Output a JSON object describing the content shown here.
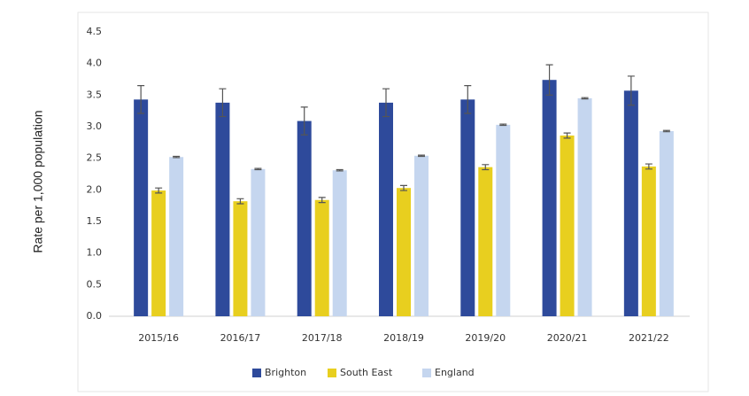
{
  "chart_data": {
    "type": "bar",
    "y_label": "Rate per 1,000 population",
    "categories": [
      "2015/16",
      "2016/17",
      "2017/18",
      "2018/19",
      "2019/20",
      "2020/21",
      "2021/22"
    ],
    "series": [
      {
        "name": "Brighton",
        "color": "#2e4a9b",
        "values": [
          3.43,
          3.38,
          3.09,
          3.38,
          3.43,
          3.74,
          3.57
        ],
        "errors": [
          0.22,
          0.22,
          0.22,
          0.22,
          0.22,
          0.24,
          0.23
        ]
      },
      {
        "name": "South East",
        "color": "#e8cf1f",
        "values": [
          1.99,
          1.82,
          1.84,
          2.03,
          2.36,
          2.86,
          2.37
        ],
        "errors": [
          0.04,
          0.04,
          0.04,
          0.04,
          0.04,
          0.04,
          0.04
        ]
      },
      {
        "name": "England",
        "color": "#c5d6ef",
        "values": [
          2.52,
          2.33,
          2.31,
          2.54,
          3.03,
          3.45,
          2.93
        ],
        "errors": [
          0.01,
          0.01,
          0.01,
          0.01,
          0.01,
          0.01,
          0.01
        ]
      }
    ],
    "ylim": [
      0,
      4.5
    ],
    "yticks": [
      {
        "value": 0,
        "label": "0.0"
      },
      {
        "value": 0.5,
        "label": "0.5"
      },
      {
        "value": 1,
        "label": "1.0"
      },
      {
        "value": 1.5,
        "label": "1.5"
      },
      {
        "value": 2,
        "label": "2.0"
      },
      {
        "value": 2.5,
        "label": "2.5"
      },
      {
        "value": 3,
        "label": "3.0"
      },
      {
        "value": 3.5,
        "label": "3.5"
      },
      {
        "value": 4,
        "label": "4.0"
      },
      {
        "value": 4.5,
        "label": "4.5"
      }
    ],
    "grid": false,
    "legend": "bottom"
  }
}
